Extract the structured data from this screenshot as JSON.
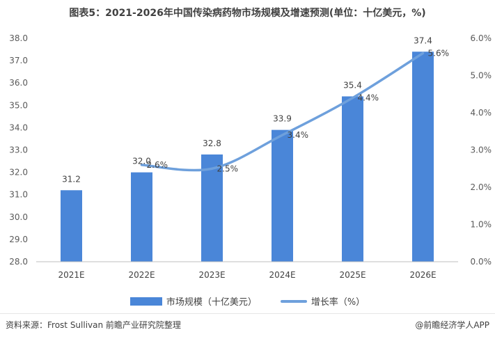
{
  "title": "图表5：2021-2026年中国传染病药物市场规模及增速预测(单位：十亿美元，%)",
  "legend": {
    "bar_label": "市场规模（十亿美元）",
    "line_label": "增长率（%）"
  },
  "source": "资料来源：Frost Sullivan 前瞻产业研究院整理",
  "brand": "@前瞻经济学人APP",
  "colors": {
    "bar": "#4a86d8",
    "line": "#6ea0dc",
    "axis": "#bfbfbf"
  },
  "chart_data": {
    "type": "bar",
    "categories": [
      "2021E",
      "2022E",
      "2023E",
      "2024E",
      "2025E",
      "2026E"
    ],
    "series": [
      {
        "name": "市场规模（十亿美元）",
        "type": "bar",
        "axis": "left",
        "values": [
          31.2,
          32.0,
          32.8,
          33.9,
          35.4,
          37.4
        ]
      },
      {
        "name": "增长率（%）",
        "type": "line",
        "axis": "right",
        "values": [
          null,
          2.6,
          2.5,
          3.4,
          4.4,
          5.6
        ]
      }
    ],
    "y_left": {
      "min": 28.0,
      "max": 38.0,
      "step": 1.0
    },
    "y_right": {
      "min": 0.0,
      "max": 6.0,
      "step": 1.0
    },
    "bar_value_labels": [
      "31.2",
      "32.0",
      "32.8",
      "33.9",
      "35.4",
      "37.4"
    ],
    "line_value_labels": [
      "",
      "2.6%",
      "2.5%",
      "3.4%",
      "4.4%",
      "5.6%"
    ],
    "grid": false,
    "legend_position": "bottom"
  }
}
